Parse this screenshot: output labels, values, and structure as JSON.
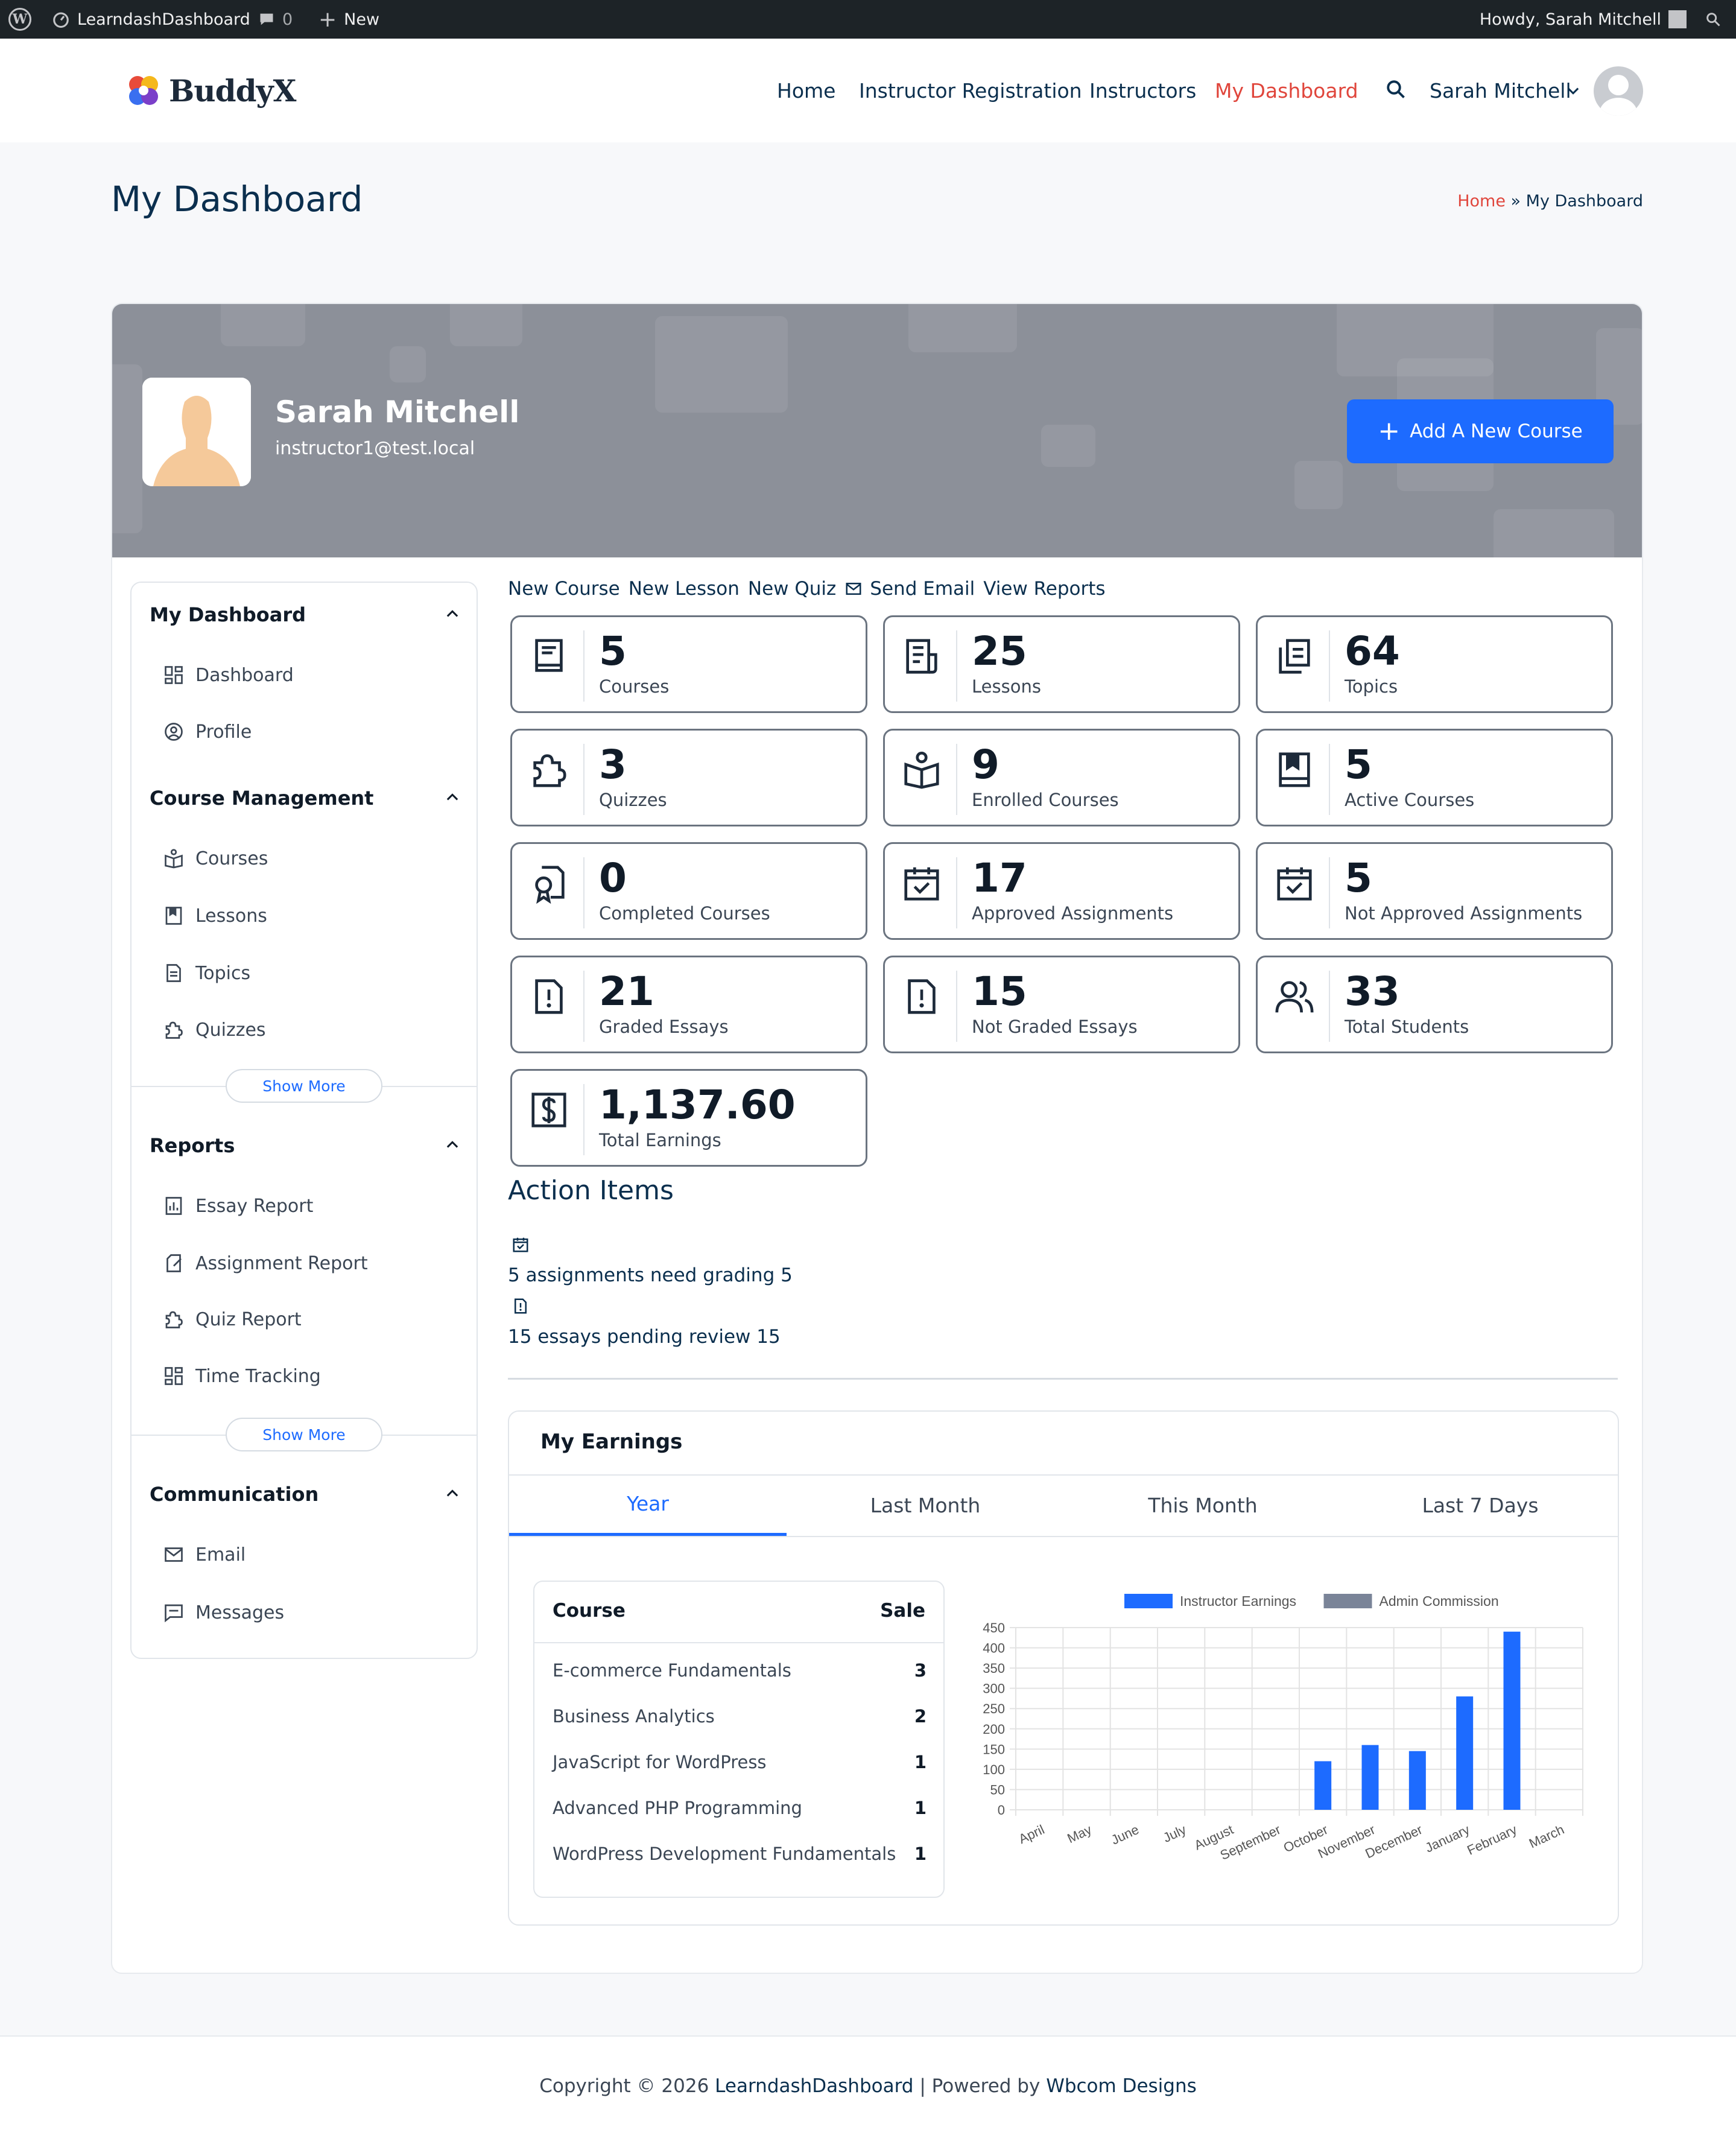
{
  "adminbar": {
    "site_name": "LearndashDashboard",
    "comments_count": "0",
    "new_label": "New",
    "howdy": "Howdy, Sarah Mitchell"
  },
  "header": {
    "logo_text": "BuddyX",
    "nav": [
      "Home",
      "Instructor Registration",
      "Instructors",
      "My Dashboard"
    ],
    "user_name": "Sarah Mitchell"
  },
  "page": {
    "title": "My Dashboard",
    "breadcrumb_home": "Home",
    "breadcrumb_sep": "»",
    "breadcrumb_current": "My Dashboard"
  },
  "profile": {
    "name": "Sarah Mitchell",
    "email": "instructor1@test.local",
    "add_course_label": "Add A New Course"
  },
  "sidebar": {
    "sections": [
      {
        "title": "My Dashboard",
        "items": [
          {
            "label": "Dashboard",
            "icon": "dashboard-icon"
          },
          {
            "label": "Profile",
            "icon": "profile-icon"
          }
        ]
      },
      {
        "title": "Course Management",
        "items": [
          {
            "label": "Courses",
            "icon": "courses-icon"
          },
          {
            "label": "Lessons",
            "icon": "lessons-icon"
          },
          {
            "label": "Topics",
            "icon": "topics-icon"
          },
          {
            "label": "Quizzes",
            "icon": "quizzes-icon"
          }
        ],
        "show_more": "Show More"
      },
      {
        "title": "Reports",
        "items": [
          {
            "label": "Essay Report",
            "icon": "essay-report-icon"
          },
          {
            "label": "Assignment Report",
            "icon": "assignment-report-icon"
          },
          {
            "label": "Quiz Report",
            "icon": "quiz-report-icon"
          },
          {
            "label": "Time Tracking",
            "icon": "time-tracking-icon"
          }
        ],
        "show_more": "Show More"
      },
      {
        "title": "Communication",
        "items": [
          {
            "label": "Email",
            "icon": "email-icon"
          },
          {
            "label": "Messages",
            "icon": "messages-icon"
          }
        ]
      }
    ]
  },
  "quick_links": [
    "New Course",
    "New Lesson",
    "New Quiz",
    "Send Email",
    "View Reports"
  ],
  "stats": [
    {
      "value": "5",
      "label": "Courses",
      "icon": "book-icon"
    },
    {
      "value": "25",
      "label": "Lessons",
      "icon": "document-icon"
    },
    {
      "value": "64",
      "label": "Topics",
      "icon": "copy-icon"
    },
    {
      "value": "3",
      "label": "Quizzes",
      "icon": "puzzle-icon"
    },
    {
      "value": "9",
      "label": "Enrolled Courses",
      "icon": "reader-icon"
    },
    {
      "value": "5",
      "label": "Active Courses",
      "icon": "bookmark-book-icon"
    },
    {
      "value": "0",
      "label": "Completed Courses",
      "icon": "certificate-icon"
    },
    {
      "value": "17",
      "label": "Approved Assignments",
      "icon": "calendar-check-icon"
    },
    {
      "value": "5",
      "label": "Not Approved Assignments",
      "icon": "calendar-check-icon"
    },
    {
      "value": "21",
      "label": "Graded Essays",
      "icon": "alert-document-icon"
    },
    {
      "value": "15",
      "label": "Not Graded Essays",
      "icon": "alert-document-icon"
    },
    {
      "value": "33",
      "label": "Total Students",
      "icon": "users-icon"
    },
    {
      "value": "1,137.60",
      "label": "Total Earnings",
      "icon": "dollar-icon"
    }
  ],
  "action_items": {
    "title": "Action Items",
    "items": [
      {
        "text": "5 assignments need grading 5",
        "icon": "calendar-check-icon"
      },
      {
        "text": "15 essays pending review 15",
        "icon": "alert-document-icon"
      }
    ]
  },
  "earnings": {
    "title": "My Earnings",
    "tabs": [
      "Year",
      "Last Month",
      "This Month",
      "Last 7 Days"
    ],
    "active_tab": "Year",
    "table_headers": [
      "Course",
      "Sale"
    ],
    "rows": [
      {
        "course": "E-commerce Fundamentals",
        "sale": "3"
      },
      {
        "course": "Business Analytics",
        "sale": "2"
      },
      {
        "course": "JavaScript for WordPress",
        "sale": "1"
      },
      {
        "course": "Advanced PHP Programming",
        "sale": "1"
      },
      {
        "course": "WordPress Development Fundamentals",
        "sale": "1"
      }
    ]
  },
  "chart_data": {
    "type": "bar",
    "categories": [
      "April",
      "May",
      "June",
      "July",
      "August",
      "September",
      "October",
      "November",
      "December",
      "January",
      "February",
      "March"
    ],
    "series": [
      {
        "name": "Instructor Earnings",
        "color": "#1d6bff",
        "values": [
          0,
          0,
          0,
          0,
          0,
          0,
          120,
          160,
          145,
          280,
          440,
          0
        ]
      },
      {
        "name": "Admin Commission",
        "color": "#7a8498",
        "values": [
          0,
          0,
          0,
          0,
          0,
          0,
          0,
          0,
          0,
          0,
          0,
          0
        ]
      }
    ],
    "yticks": [
      0,
      50,
      100,
      150,
      200,
      250,
      300,
      350,
      400,
      450
    ],
    "ylim": [
      0,
      450
    ],
    "grid": true,
    "legend": "top"
  },
  "footer": {
    "prefix": "Copyright © 2026",
    "site_link": "LearndashDashboard",
    "middle": "| Powered by",
    "powered_link": "Wbcom Designs"
  },
  "colors": {
    "accent": "#1d6bff",
    "active_nav": "#e0463c",
    "navy": "#0b2f4e"
  }
}
